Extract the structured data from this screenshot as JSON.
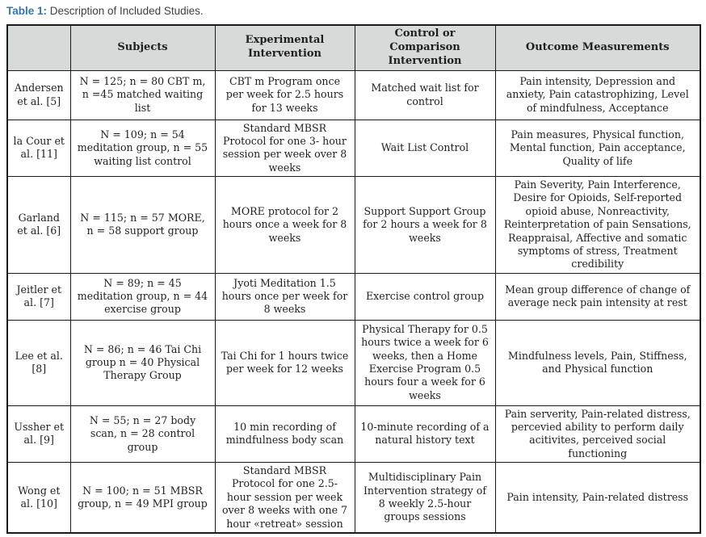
{
  "caption": {
    "label": "Table 1:",
    "text": " Description of Included Studies."
  },
  "colors": {
    "accent_blue": "#2e75b6",
    "header_bg": "#d6dad8",
    "border": "#1a1a1a"
  },
  "table": {
    "headers": [
      "",
      "Subjects",
      "Experimental Intervention",
      "Control or Comparison Intervention",
      "Outcome Measurements"
    ],
    "rows": [
      {
        "study": "Andersen et al. [5]",
        "subjects": "N = 125; n = 80 CBT m, n =45 matched waiting list",
        "experimental": "CBT m Program once per week for 2.5 hours for 13 weeks",
        "control": "Matched wait list for control",
        "outcome": "Pain intensity, Depression and anxiety, Pain catastrophizing, Level of mindfulness, Acceptance"
      },
      {
        "study": "la Cour et al. [11]",
        "subjects": "N = 109; n = 54 meditation group, n = 55 waiting list control",
        "experimental": "Standard MBSR Protocol for one 3- hour session per week over 8 weeks",
        "control": "Wait List Control",
        "outcome": "Pain measures, Physical function, Mental function, Pain acceptance, Quality of life"
      },
      {
        "study": "Garland et al. [6]",
        "subjects": "N = 115; n = 57 MORE, n = 58 support group",
        "experimental": "MORE protocol for 2 hours once a week for 8 weeks",
        "control": "Support Support Group for 2 hours a week for 8 weeks",
        "outcome": "Pain Severity, Pain Interference, Desire for Opioids, Self-reported opioid abuse, Nonreactivity, Reinterpretation of pain Sensations, Reappraisal, Affective and somatic symptoms of stress, Treatment credibility"
      },
      {
        "study": "Jeitler et al. [7]",
        "subjects": "N = 89; n = 45 meditation group, n = 44 exercise group",
        "experimental": "Jyoti Meditation 1.5 hours once per week for 8 weeks",
        "control": "Exercise control group",
        "outcome": "Mean group difference of change of average neck pain intensity at rest"
      },
      {
        "study": "Lee et al. [8]",
        "subjects": "N = 86; n = 46 Tai Chi group n = 40 Physical Therapy Group",
        "experimental": "Tai Chi for 1 hours twice per week for 12 weeks",
        "control": "Physical Therapy for 0.5 hours twice a week for 6 weeks, then a Home Exercise Program 0.5 hours four a week for 6 weeks",
        "outcome": "Mindfulness levels, Pain, Stiffness, and Physical function"
      },
      {
        "study": "Ussher et al. [9]",
        "subjects": "N = 55; n = 27 body scan, n = 28 control group",
        "experimental": "10 min recording of mindfulness body scan",
        "control": "10-minute recording of a natural history text",
        "outcome": "Pain serverity, Pain-related distress, percevied ability to perform daily acitivites, perceived social functioning"
      },
      {
        "study": "Wong et al. [10]",
        "subjects": "N = 100; n = 51 MBSR group, n = 49 MPI group",
        "experimental": "Standard MBSR Protocol for one 2.5- hour session per week over 8 weeks with one 7 hour «retreat» session",
        "control": "Multidisciplinary Pain Intervention strategy of 8 weekly 2.5-hour groups sessions",
        "outcome": "Pain intensity, Pain-related distress"
      }
    ]
  }
}
